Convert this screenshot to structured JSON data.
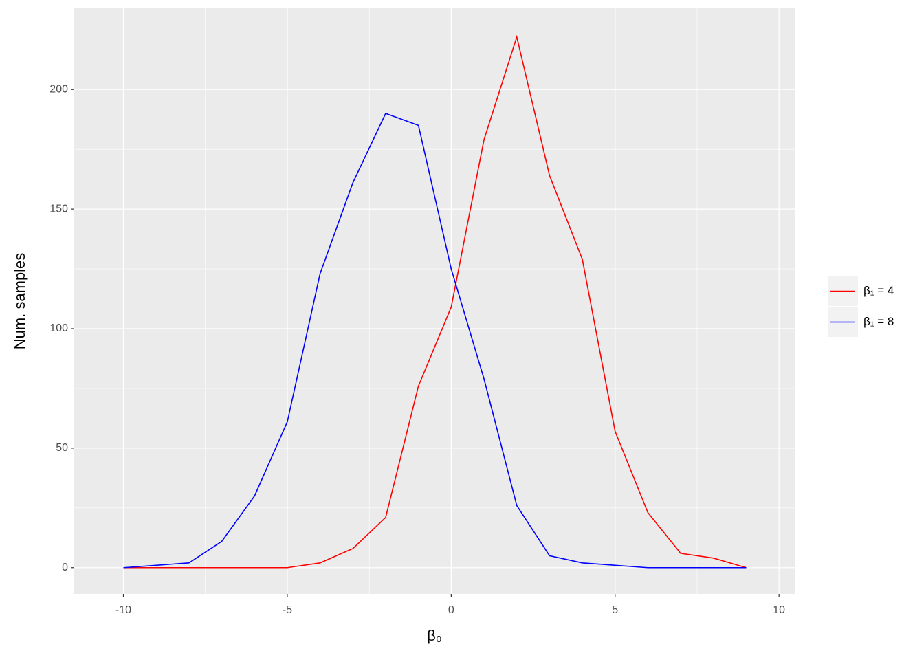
{
  "chart_data": {
    "type": "line",
    "x_label": "β₀",
    "y_label": "Num. samples",
    "x": [
      -10,
      -9,
      -8,
      -7,
      -6,
      -5,
      -4,
      -3,
      -2,
      -1,
      0,
      1,
      2,
      3,
      4,
      5,
      6,
      7,
      8,
      9
    ],
    "series": [
      {
        "name": "β₁ = 4",
        "color": "#ff0000",
        "values": [
          0,
          0,
          0,
          0,
          0,
          0,
          2,
          8,
          21,
          76,
          109,
          179,
          222,
          164,
          129,
          57,
          23,
          6,
          4,
          0
        ]
      },
      {
        "name": "β₁ = 8",
        "color": "#0000ff",
        "values": [
          0,
          1,
          2,
          11,
          30,
          61,
          123,
          161,
          190,
          185,
          125,
          79,
          26,
          5,
          2,
          1,
          0,
          0,
          0,
          0
        ]
      }
    ],
    "xlim": [
      -11.5,
      10.5
    ],
    "xticks": [
      -10,
      -5,
      0,
      5,
      10
    ],
    "ylim": [
      -11,
      234
    ],
    "yticks": [
      0,
      50,
      100,
      150,
      200
    ],
    "x_minor_grid": [
      -7.5,
      -2.5,
      2.5,
      7.5
    ],
    "y_minor_grid": [
      25,
      75,
      125,
      175,
      225
    ],
    "grid": true,
    "legend": "right"
  }
}
